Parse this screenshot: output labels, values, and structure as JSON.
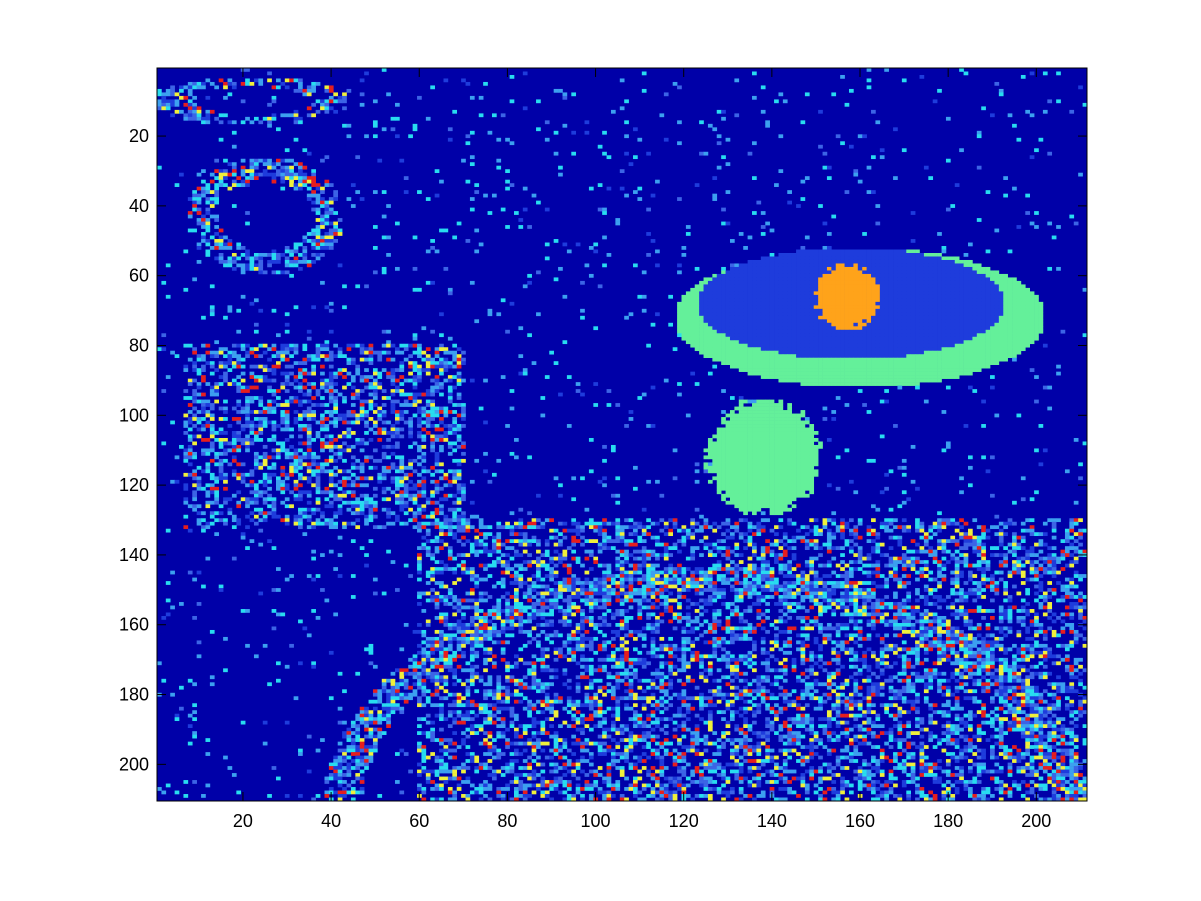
{
  "chart_data": {
    "type": "heatmap",
    "title": "",
    "xlabel": "",
    "ylabel": "",
    "xlim": [
      0.5,
      211.5
    ],
    "ylim": [
      0.5,
      210.5
    ],
    "y_direction": "reversed",
    "colormap": "jet",
    "background_color": "#0000a8",
    "xticks": [
      20,
      40,
      60,
      80,
      100,
      120,
      140,
      160,
      180,
      200
    ],
    "yticks": [
      20,
      40,
      60,
      80,
      100,
      120,
      140,
      160,
      180,
      200
    ],
    "grid": false,
    "colors": {
      "dark_blue": "#0000a8",
      "blue": "#1e3cdc",
      "mid_blue": "#3c64e6",
      "light_blue": "#3ca0f0",
      "cyan": "#28dcf0",
      "green": "#64f09a",
      "yellow": "#f0f03c",
      "orange": "#ffa31a",
      "red": "#e61e1e"
    },
    "regions": [
      {
        "shape": "ellipse-ring",
        "center": [
          22,
          10
        ],
        "radius": [
          22,
          7
        ],
        "texture": "speckle"
      },
      {
        "shape": "ellipse-ring",
        "center": [
          25,
          43
        ],
        "radius": [
          18,
          17
        ],
        "texture": "speckle"
      },
      {
        "shape": "block",
        "x": [
          7,
          70
        ],
        "y": [
          80,
          132
        ],
        "texture": "speckle"
      },
      {
        "shape": "ellipse",
        "center": [
          160,
          72
        ],
        "radius": [
          42,
          20
        ],
        "fill": "green"
      },
      {
        "shape": "ellipse",
        "center": [
          158,
          68
        ],
        "radius": [
          35,
          16
        ],
        "fill": "blue"
      },
      {
        "shape": "blob",
        "center": [
          157,
          66
        ],
        "radius": [
          8,
          10
        ],
        "fill": "orange"
      },
      {
        "shape": "blob",
        "center": [
          138,
          112
        ],
        "radius": [
          14,
          18
        ],
        "fill": "green"
      },
      {
        "shape": "arc",
        "center": [
          125,
          215
        ],
        "radius": [
          85,
          70
        ],
        "texture": "speckle"
      },
      {
        "shape": "block",
        "x": [
          60,
          212
        ],
        "y": [
          130,
          211
        ],
        "texture": "speckle"
      }
    ]
  }
}
